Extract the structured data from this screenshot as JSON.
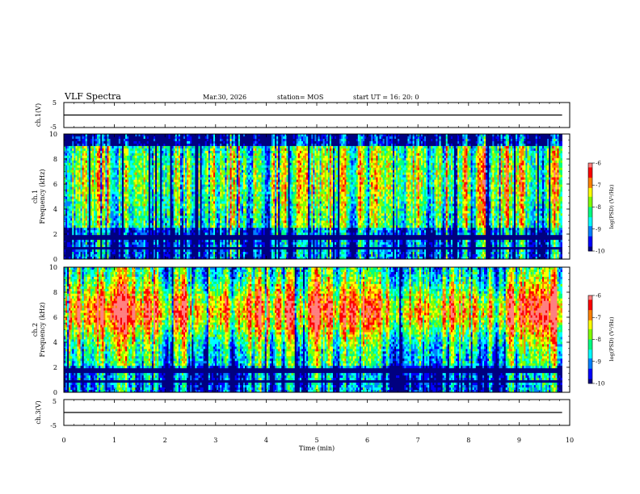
{
  "header": {
    "title": "VLF Spectra",
    "date": "Mar.30, 2026",
    "station": "station= MOS",
    "start_ut": "start  UT =   16: 20: 0"
  },
  "chart_data": [
    {
      "name": "ch1-waveform",
      "type": "line",
      "ylabel": "ch.1(V)",
      "ylim": [
        -5,
        5
      ],
      "ytick_labels": [
        "5",
        "-5"
      ],
      "xlim": [
        0,
        10
      ],
      "level": 0
    },
    {
      "name": "ch1-spectrogram",
      "type": "heatmap",
      "ylabel": "ch.1\nFrequency (kHz)",
      "ylim": [
        0,
        10
      ],
      "ytick_labels": [
        "0",
        "2",
        "4",
        "6",
        "8",
        "10"
      ],
      "xlim": [
        0,
        10
      ],
      "x_end": 9.85,
      "colorbar": {
        "min": -10,
        "max": -6,
        "tick_labels": [
          "-6",
          "-7",
          "-8",
          "-9",
          "-10"
        ],
        "label": "log(PSD) (V²/Hz)"
      },
      "band_peak_khz": 6.5
    },
    {
      "name": "ch2-spectrogram",
      "type": "heatmap",
      "ylabel": "ch.2\nFrequency (kHz)",
      "ylim": [
        0,
        10
      ],
      "ytick_labels": [
        "0",
        "2",
        "4",
        "6",
        "8",
        "10"
      ],
      "xlim": [
        0,
        10
      ],
      "x_end": 9.85,
      "colorbar": {
        "min": -10,
        "max": -6,
        "tick_labels": [
          "-6",
          "-7",
          "-8",
          "-9",
          "-10"
        ],
        "label": "log(PSD) (V²/Hz)"
      },
      "band_peak_khz": 6.5
    },
    {
      "name": "ch3-waveform",
      "type": "line",
      "ylabel": "ch.3(V)",
      "ylim": [
        -5,
        5
      ],
      "ytick_labels": [
        "5",
        "-5"
      ],
      "xlim": [
        0,
        10
      ],
      "level": 0
    }
  ],
  "xaxis": {
    "label": "Time (min)",
    "tick_labels": [
      "0",
      "1",
      "2",
      "3",
      "4",
      "5",
      "6",
      "7",
      "8",
      "9",
      "10"
    ]
  },
  "colormap": [
    "#000080",
    "#0000ff",
    "#0080ff",
    "#00ffff",
    "#00ff80",
    "#80ff00",
    "#ffff00",
    "#ff8000",
    "#ff0000",
    "#ff8080",
    "#ffffff"
  ]
}
